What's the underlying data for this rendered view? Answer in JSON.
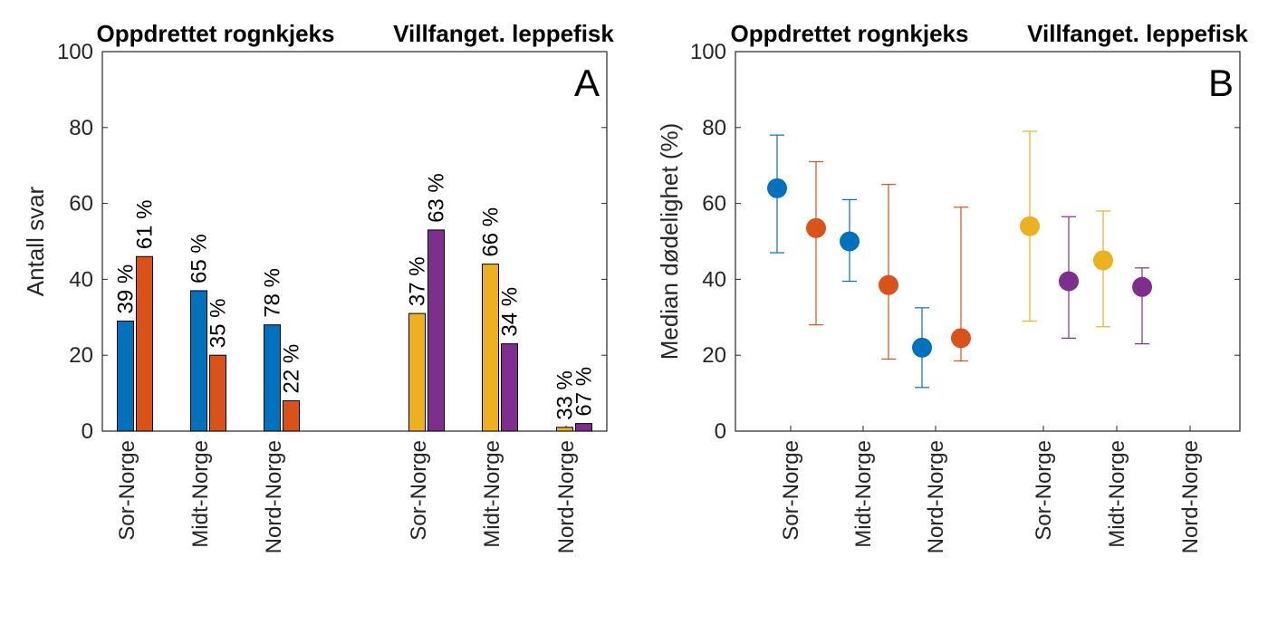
{
  "chart_data": [
    {
      "type": "bar",
      "panel_label": "A",
      "group_titles": [
        "Oppdrettet rognkjeks",
        "Villfanget. leppefisk"
      ],
      "categories": [
        "Sor-Norge",
        "Midt-Norge",
        "Nord-Norge",
        "Sor-Norge",
        "Midt-Norge",
        "Nord-Norge"
      ],
      "ylabel": "Antall svar",
      "xlabel": "",
      "ylim": [
        0,
        100
      ],
      "yticks": [
        "0",
        "20",
        "40",
        "60",
        "80",
        "100"
      ],
      "grid": false,
      "bars": [
        {
          "category_index": 0,
          "value": 29,
          "label": "39 %",
          "color": "#0072BD"
        },
        {
          "category_index": 0,
          "value": 46,
          "label": "61 %",
          "color": "#D95319"
        },
        {
          "category_index": 1,
          "value": 37,
          "label": "65 %",
          "color": "#0072BD"
        },
        {
          "category_index": 1,
          "value": 20,
          "label": "35 %",
          "color": "#D95319"
        },
        {
          "category_index": 2,
          "value": 28,
          "label": "78 %",
          "color": "#0072BD"
        },
        {
          "category_index": 2,
          "value": 8,
          "label": "22 %",
          "color": "#D95319"
        },
        {
          "category_index": 3,
          "value": 31,
          "label": "37 %",
          "color": "#EDB120"
        },
        {
          "category_index": 3,
          "value": 53,
          "label": "63 %",
          "color": "#7E2F8E"
        },
        {
          "category_index": 4,
          "value": 44,
          "label": "66 %",
          "color": "#EDB120"
        },
        {
          "category_index": 4,
          "value": 23,
          "label": "34 %",
          "color": "#7E2F8E"
        },
        {
          "category_index": 5,
          "value": 1,
          "label": "33 %",
          "color": "#EDB120"
        },
        {
          "category_index": 5,
          "value": 2,
          "label": "67 %",
          "color": "#7E2F8E"
        }
      ]
    },
    {
      "type": "scatter",
      "panel_label": "B",
      "group_titles": [
        "Oppdrettet rognkjeks",
        "Villfanget. leppefisk"
      ],
      "categories": [
        "Sor-Norge",
        "Midt-Norge",
        "Nord-Norge",
        "Sor-Norge",
        "Midt-Norge",
        "Nord-Norge"
      ],
      "ylabel": "Median dødelighet (%)",
      "xlabel": "",
      "ylim": [
        0,
        100
      ],
      "yticks": [
        "0",
        "20",
        "40",
        "60",
        "80",
        "100"
      ],
      "grid": false,
      "points": [
        {
          "category_index": 0,
          "value": 64,
          "low": 47,
          "high": 78,
          "color": "#0072BD"
        },
        {
          "category_index": 0,
          "value": 53.5,
          "low": 28,
          "high": 71,
          "color": "#D95319"
        },
        {
          "category_index": 1,
          "value": 50,
          "low": 39.5,
          "high": 61,
          "color": "#0072BD"
        },
        {
          "category_index": 1,
          "value": 38.5,
          "low": 19,
          "high": 65,
          "color": "#D95319"
        },
        {
          "category_index": 2,
          "value": 22,
          "low": 11.5,
          "high": 32.5,
          "color": "#0072BD"
        },
        {
          "category_index": 2,
          "value": 24.5,
          "low": 18.5,
          "high": 59,
          "color": "#D95319"
        },
        {
          "category_index": 3,
          "value": 54,
          "low": 29,
          "high": 79,
          "color": "#EDB120"
        },
        {
          "category_index": 3,
          "value": 39.5,
          "low": 24.5,
          "high": 56.5,
          "color": "#7E2F8E"
        },
        {
          "category_index": 4,
          "value": 45,
          "low": 27.5,
          "high": 58,
          "color": "#EDB120"
        },
        {
          "category_index": 4,
          "value": 38,
          "low": 23,
          "high": 43,
          "color": "#7E2F8E"
        }
      ]
    }
  ]
}
